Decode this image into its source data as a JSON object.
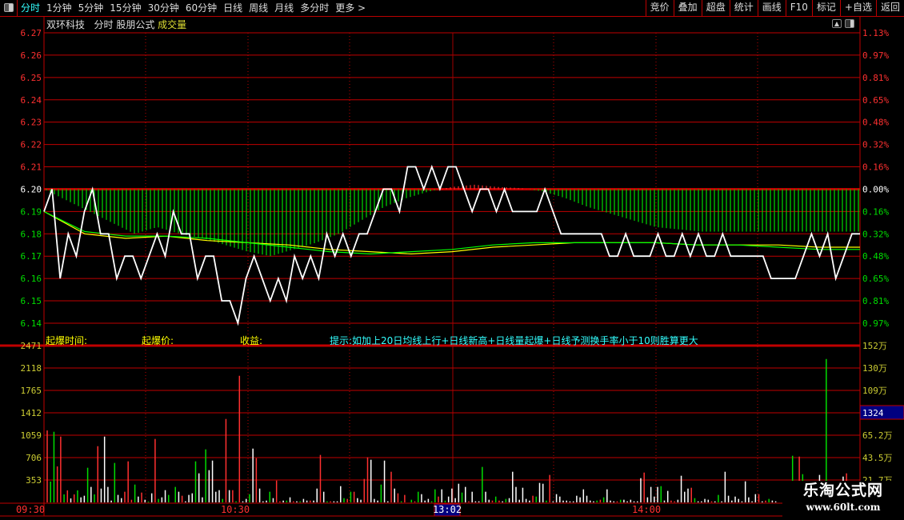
{
  "toolbar": {
    "periods": [
      "分时",
      "1分钟",
      "5分钟",
      "15分钟",
      "30分钟",
      "60分钟",
      "日线",
      "周线",
      "月线",
      "多分时",
      "更多 >"
    ],
    "active": "分时",
    "right_buttons": [
      "竞价",
      "叠加",
      "超盘",
      "统计",
      "画线",
      "F10",
      "标记",
      "+自选",
      "返回"
    ]
  },
  "header": {
    "stock": "双环科技",
    "mode": "分时",
    "formula": "股朋公式",
    "indicator": "成交量"
  },
  "info": {
    "time_label": "起爆时间:",
    "price_label": "起爆价:",
    "profit_label": "收益:",
    "tip": "提示:如加上20日均线上行+日线新高+日线量起爆+日线予测换手率小于10则胜算更大"
  },
  "colors": {
    "up": "#ff3030",
    "down": "#00dd00",
    "flat": "#ffffff",
    "grid": "#c00000",
    "avg1": "#ffff00",
    "avg2": "#00ff00",
    "axis_text_volume": "#cccc33"
  },
  "price_axis": {
    "left": [
      "6.27",
      "6.26",
      "6.25",
      "6.24",
      "6.23",
      "6.22",
      "6.21",
      "6.20",
      "6.19",
      "6.18",
      "6.17",
      "6.16",
      "6.15",
      "6.14"
    ],
    "right": [
      "1.13%",
      "0.97%",
      "0.81%",
      "0.65%",
      "0.48%",
      "0.32%",
      "0.16%",
      "0.00%",
      "0.16%",
      "0.32%",
      "0.48%",
      "0.65%",
      "0.81%",
      "0.97%"
    ],
    "prev_close": 6.2
  },
  "volume_axis": {
    "left": [
      "2471",
      "2118",
      "1765",
      "1412",
      "1059",
      "706",
      "353"
    ],
    "right": [
      "152万",
      "130万",
      "109万",
      "",
      "65.2万",
      "43.5万",
      "21.7万"
    ],
    "max": 2471
  },
  "cursor": {
    "volume_readout": "1324",
    "time_readout": "13:02"
  },
  "time_axis": [
    "09:30",
    "10:30",
    "14:00"
  ],
  "chart_data": {
    "type": "line",
    "price": [
      6.19,
      6.2,
      6.16,
      6.18,
      6.17,
      6.19,
      6.2,
      6.18,
      6.18,
      6.16,
      6.17,
      6.17,
      6.16,
      6.17,
      6.18,
      6.17,
      6.19,
      6.18,
      6.18,
      6.16,
      6.17,
      6.17,
      6.15,
      6.15,
      6.14,
      6.16,
      6.17,
      6.16,
      6.15,
      6.16,
      6.15,
      6.17,
      6.16,
      6.17,
      6.16,
      6.18,
      6.17,
      6.18,
      6.17,
      6.18,
      6.18,
      6.19,
      6.2,
      6.2,
      6.19,
      6.21,
      6.21,
      6.2,
      6.21,
      6.2,
      6.21,
      6.21,
      6.2,
      6.19,
      6.2,
      6.2,
      6.19,
      6.2,
      6.19,
      6.19,
      6.19,
      6.19,
      6.2,
      6.19,
      6.18,
      6.18,
      6.18,
      6.18,
      6.18,
      6.18,
      6.17,
      6.17,
      6.18,
      6.17,
      6.17,
      6.17,
      6.18,
      6.17,
      6.17,
      6.18,
      6.17,
      6.18,
      6.17,
      6.17,
      6.18,
      6.17,
      6.17,
      6.17,
      6.17,
      6.17,
      6.16,
      6.16,
      6.16,
      6.16,
      6.17,
      6.18,
      6.17,
      6.18,
      6.16,
      6.17,
      6.18,
      6.18
    ],
    "avg_yellow": [
      6.19,
      6.18,
      6.178,
      6.179,
      6.177,
      6.176,
      6.175,
      6.173,
      6.172,
      6.171,
      6.172,
      6.174,
      6.175,
      6.176,
      6.176,
      6.176,
      6.175,
      6.175,
      6.175,
      6.174,
      6.174
    ],
    "avg_green": [
      6.19,
      6.181,
      6.179,
      6.179,
      6.178,
      6.176,
      6.174,
      6.172,
      6.171,
      6.172,
      6.173,
      6.175,
      6.176,
      6.176,
      6.176,
      6.176,
      6.175,
      6.175,
      6.174,
      6.173,
      6.173
    ],
    "indicator": [
      6.2,
      6.195,
      6.19,
      6.185,
      6.18,
      6.183,
      6.18,
      6.178,
      6.175,
      6.172,
      6.17,
      6.173,
      6.176,
      6.18,
      6.186,
      6.192,
      6.196,
      6.199,
      6.201,
      6.202,
      6.201,
      6.2005,
      6.199,
      6.196,
      6.192,
      6.189,
      6.186,
      6.183,
      6.182,
      6.181,
      6.181,
      6.181,
      6.181,
      6.181,
      6.181,
      6.181,
      6.181
    ],
    "volume": [
      [
        1134,
        "r"
      ],
      [
        328,
        "g"
      ],
      [
        1113,
        "g"
      ],
      [
        567,
        "r"
      ],
      [
        1037,
        "r"
      ],
      [
        126,
        "g"
      ],
      [
        189,
        "r"
      ],
      [
        63,
        "w"
      ],
      [
        126,
        "r"
      ],
      [
        189,
        "g"
      ],
      [
        80,
        "w"
      ],
      [
        105,
        "w"
      ],
      [
        546,
        "g"
      ],
      [
        244,
        "w"
      ],
      [
        126,
        "g"
      ],
      [
        886,
        "r"
      ],
      [
        218,
        "w"
      ],
      [
        1037,
        "w"
      ],
      [
        244,
        "w"
      ],
      [
        29,
        "w"
      ],
      [
        622,
        "g"
      ],
      [
        118,
        "w"
      ],
      [
        67,
        "w"
      ],
      [
        168,
        "r"
      ],
      [
        647,
        "r"
      ],
      [
        42,
        "r"
      ],
      [
        281,
        "g"
      ],
      [
        92,
        "w"
      ],
      [
        155,
        "r"
      ],
      [
        42,
        "w"
      ],
      [
        13,
        "g"
      ],
      [
        143,
        "w"
      ],
      [
        1000,
        "r"
      ],
      [
        55,
        "g"
      ],
      [
        80,
        "w"
      ],
      [
        193,
        "w"
      ],
      [
        118,
        "g"
      ],
      [
        0,
        "w"
      ],
      [
        244,
        "g"
      ],
      [
        168,
        "w"
      ],
      [
        105,
        "r"
      ],
      [
        17,
        "w"
      ],
      [
        118,
        "w"
      ],
      [
        143,
        "w"
      ],
      [
        647,
        "g"
      ],
      [
        458,
        "w"
      ],
      [
        80,
        "w"
      ],
      [
        836,
        "g"
      ],
      [
        508,
        "w"
      ],
      [
        659,
        "w"
      ],
      [
        168,
        "w"
      ],
      [
        193,
        "w"
      ],
      [
        55,
        "g"
      ],
      [
        1315,
        "r"
      ],
      [
        193,
        "w"
      ],
      [
        193,
        "r"
      ],
      [
        17,
        "g"
      ],
      [
        1995,
        "r"
      ],
      [
        17,
        "w"
      ],
      [
        55,
        "w"
      ],
      [
        130,
        "g"
      ],
      [
        848,
        "w"
      ],
      [
        697,
        "r"
      ],
      [
        218,
        "w"
      ],
      [
        17,
        "w"
      ],
      [
        29,
        "w"
      ],
      [
        168,
        "g"
      ],
      [
        67,
        "w"
      ],
      [
        344,
        "r"
      ],
      [
        17,
        "r"
      ],
      [
        29,
        "w"
      ],
      [
        29,
        "g"
      ],
      [
        80,
        "w"
      ],
      [
        17,
        "r"
      ],
      [
        17,
        "w"
      ],
      [
        17,
        "g"
      ],
      [
        55,
        "w"
      ],
      [
        29,
        "w"
      ],
      [
        29,
        "r"
      ],
      [
        29,
        "w"
      ],
      [
        218,
        "w"
      ],
      [
        748,
        "r"
      ],
      [
        168,
        "w"
      ],
      [
        17,
        "g"
      ],
      [
        17,
        "r"
      ],
      [
        17,
        "w"
      ],
      [
        17,
        "w"
      ],
      [
        256,
        "w"
      ],
      [
        67,
        "g"
      ],
      [
        55,
        "r"
      ],
      [
        168,
        "g"
      ],
      [
        168,
        "r"
      ],
      [
        67,
        "w"
      ],
      [
        42,
        "w"
      ],
      [
        370,
        "r"
      ],
      [
        710,
        "r"
      ],
      [
        672,
        "w"
      ],
      [
        55,
        "w"
      ],
      [
        29,
        "w"
      ],
      [
        281,
        "g"
      ],
      [
        659,
        "w"
      ],
      [
        17,
        "w"
      ],
      [
        483,
        "r"
      ],
      [
        218,
        "w"
      ],
      [
        143,
        "r"
      ],
      [
        17,
        "g"
      ],
      [
        118,
        "r"
      ],
      [
        0,
        "w"
      ],
      [
        42,
        "g"
      ],
      [
        17,
        "r"
      ],
      [
        168,
        "g"
      ],
      [
        130,
        "w"
      ],
      [
        29,
        "w"
      ],
      [
        55,
        "w"
      ],
      [
        17,
        "g"
      ],
      [
        206,
        "g"
      ],
      [
        92,
        "r"
      ],
      [
        206,
        "w"
      ],
      [
        29,
        "g"
      ],
      [
        92,
        "w"
      ],
      [
        218,
        "w"
      ],
      [
        67,
        "w"
      ],
      [
        294,
        "w"
      ],
      [
        155,
        "g"
      ],
      [
        244,
        "w"
      ],
      [
        17,
        "r"
      ],
      [
        168,
        "w"
      ],
      [
        17,
        "w"
      ],
      [
        17,
        "w"
      ],
      [
        559,
        "g"
      ],
      [
        168,
        "w"
      ],
      [
        42,
        "w"
      ],
      [
        29,
        "r"
      ],
      [
        92,
        "g"
      ],
      [
        29,
        "r"
      ],
      [
        17,
        "w"
      ],
      [
        55,
        "g"
      ],
      [
        67,
        "w"
      ],
      [
        483,
        "w"
      ],
      [
        244,
        "w"
      ],
      [
        42,
        "w"
      ],
      [
        231,
        "w"
      ],
      [
        55,
        "w"
      ],
      [
        29,
        "w"
      ],
      [
        105,
        "r"
      ],
      [
        92,
        "g"
      ],
      [
        307,
        "w"
      ],
      [
        294,
        "w"
      ],
      [
        29,
        "g"
      ],
      [
        433,
        "r"
      ],
      [
        17,
        "w"
      ],
      [
        130,
        "w"
      ],
      [
        92,
        "w"
      ],
      [
        29,
        "w"
      ],
      [
        29,
        "w"
      ],
      [
        17,
        "w"
      ],
      [
        17,
        "w"
      ],
      [
        105,
        "w"
      ],
      [
        80,
        "w"
      ],
      [
        206,
        "w"
      ],
      [
        105,
        "w"
      ],
      [
        29,
        "w"
      ],
      [
        17,
        "w"
      ],
      [
        29,
        "g"
      ],
      [
        42,
        "r"
      ],
      [
        80,
        "g"
      ],
      [
        206,
        "w"
      ],
      [
        29,
        "w"
      ],
      [
        17,
        "w"
      ],
      [
        17,
        "r"
      ],
      [
        42,
        "g"
      ],
      [
        42,
        "w"
      ],
      [
        17,
        "w"
      ],
      [
        42,
        "w"
      ],
      [
        17,
        "w"
      ],
      [
        17,
        "w"
      ],
      [
        382,
        "w"
      ],
      [
        470,
        "r"
      ],
      [
        80,
        "w"
      ],
      [
        244,
        "w"
      ],
      [
        92,
        "w"
      ],
      [
        244,
        "w"
      ],
      [
        256,
        "g"
      ],
      [
        29,
        "w"
      ],
      [
        181,
        "w"
      ],
      [
        29,
        "r"
      ],
      [
        17,
        "r"
      ],
      [
        42,
        "w"
      ],
      [
        420,
        "w"
      ],
      [
        168,
        "w"
      ],
      [
        218,
        "w"
      ],
      [
        231,
        "r"
      ],
      [
        67,
        "g"
      ],
      [
        17,
        "w"
      ],
      [
        17,
        "w"
      ],
      [
        55,
        "w"
      ],
      [
        42,
        "w"
      ],
      [
        17,
        "r"
      ],
      [
        17,
        "w"
      ],
      [
        118,
        "g"
      ],
      [
        17,
        "w"
      ],
      [
        483,
        "w"
      ],
      [
        105,
        "w"
      ],
      [
        29,
        "w"
      ],
      [
        92,
        "w"
      ],
      [
        55,
        "w"
      ],
      [
        17,
        "w"
      ],
      [
        332,
        "w"
      ],
      [
        80,
        "w"
      ],
      [
        17,
        "w"
      ],
      [
        130,
        "w"
      ],
      [
        130,
        "r"
      ],
      [
        17,
        "w"
      ],
      [
        29,
        "r"
      ],
      [
        55,
        "g"
      ],
      [
        29,
        "w"
      ],
      [
        17,
        "w"
      ],
      [
        0,
        "w"
      ],
      [
        0,
        "w"
      ],
      [
        0,
        "w"
      ],
      [
        0,
        "w"
      ],
      [
        735,
        "g"
      ],
      [
        0,
        "w"
      ],
      [
        722,
        "r"
      ],
      [
        445,
        "g"
      ],
      [
        0,
        "w"
      ],
      [
        0,
        "w"
      ],
      [
        0,
        "w"
      ],
      [
        0,
        "w"
      ],
      [
        433,
        "w"
      ],
      [
        0,
        "w"
      ],
      [
        2260,
        "g"
      ],
      [
        0,
        "w"
      ],
      [
        0,
        "w"
      ],
      [
        0,
        "w"
      ],
      [
        0,
        "w"
      ],
      [
        407,
        "w"
      ],
      [
        458,
        "r"
      ],
      [
        0,
        "w"
      ],
      [
        0,
        "w"
      ],
      [
        0,
        "w"
      ]
    ]
  }
}
